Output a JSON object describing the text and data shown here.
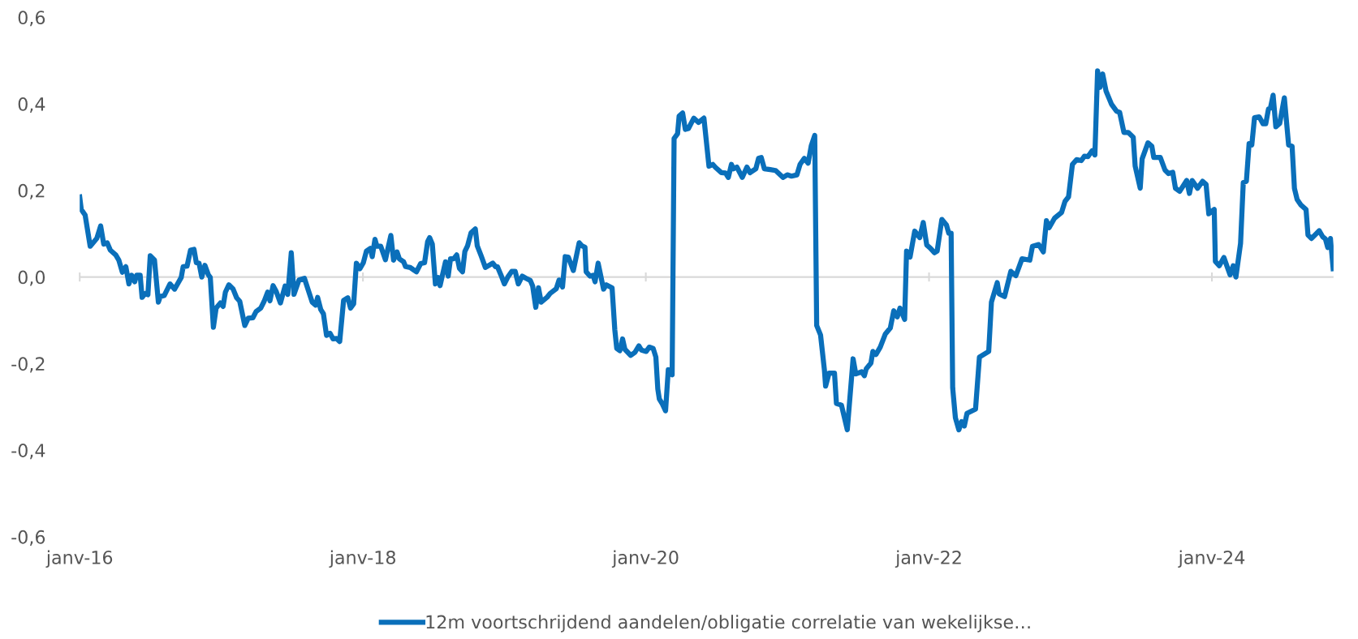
{
  "chart_data": {
    "type": "line",
    "x": [
      "2016-01-01",
      "2016-01-05",
      "2016-01-15",
      "2016-01-28",
      "2016-02-14",
      "2016-02-24",
      "2016-03-03",
      "2016-03-12",
      "2016-03-20",
      "2016-04-03",
      "2016-04-11",
      "2016-04-20",
      "2016-04-29",
      "2016-05-07",
      "2016-05-14",
      "2016-05-22",
      "2016-05-27",
      "2016-06-05",
      "2016-06-10",
      "2016-06-18",
      "2016-06-25",
      "2016-07-01",
      "2016-07-12",
      "2016-07-22",
      "2016-07-27",
      "2016-08-06",
      "2016-08-21",
      "2016-09-02",
      "2016-09-19",
      "2016-09-24",
      "2016-10-04",
      "2016-10-13",
      "2016-10-22",
      "2016-10-28",
      "2016-11-04",
      "2016-11-11",
      "2016-11-19",
      "2016-11-28",
      "2016-12-03",
      "2016-12-11",
      "2016-12-18",
      "2016-12-29",
      "2017-01-05",
      "2017-01-11",
      "2017-01-20",
      "2017-01-31",
      "2017-02-09",
      "2017-02-17",
      "2017-03-02",
      "2017-03-11",
      "2017-03-23",
      "2017-03-31",
      "2017-04-12",
      "2017-04-21",
      "2017-04-30",
      "2017-05-06",
      "2017-05-14",
      "2017-05-22",
      "2017-06-02",
      "2017-06-14",
      "2017-06-21",
      "2017-06-30",
      "2017-07-07",
      "2017-07-20",
      "2017-08-03",
      "2017-08-12",
      "2017-08-23",
      "2017-09-01",
      "2017-09-06",
      "2017-09-14",
      "2017-09-21",
      "2017-09-29",
      "2017-10-08",
      "2017-10-16",
      "2017-10-25",
      "2017-11-02",
      "2017-11-12",
      "2017-11-23",
      "2017-11-30",
      "2017-12-08",
      "2017-12-15",
      "2017-12-24",
      "2018-01-02",
      "2018-01-10",
      "2018-01-20",
      "2018-01-25",
      "2018-02-01",
      "2018-02-06",
      "2018-02-16",
      "2018-02-28",
      "2018-03-14",
      "2018-03-21",
      "2018-03-30",
      "2018-04-05",
      "2018-04-16",
      "2018-04-21",
      "2018-05-03",
      "2018-05-19",
      "2018-05-30",
      "2018-06-09",
      "2018-06-17",
      "2018-06-22",
      "2018-06-29",
      "2018-07-07",
      "2018-07-14",
      "2018-07-19",
      "2018-08-02",
      "2018-08-09",
      "2018-08-15",
      "2018-08-23",
      "2018-08-31",
      "2018-09-07",
      "2018-09-15",
      "2018-09-21",
      "2018-09-28",
      "2018-10-07",
      "2018-10-18",
      "2018-10-23",
      "2018-11-02",
      "2018-11-13",
      "2018-12-02",
      "2018-12-09",
      "2018-12-14",
      "2018-12-23",
      "2019-01-01",
      "2019-01-10",
      "2019-01-20",
      "2019-01-29",
      "2019-02-06",
      "2019-02-16",
      "2019-02-26",
      "2019-03-09",
      "2019-03-15",
      "2019-03-23",
      "2019-03-30",
      "2019-04-06",
      "2019-04-21",
      "2019-04-29",
      "2019-05-15",
      "2019-05-22",
      "2019-05-31",
      "2019-06-07",
      "2019-06-15",
      "2019-06-28",
      "2019-07-13",
      "2019-07-20",
      "2019-07-28",
      "2019-07-31",
      "2019-08-10",
      "2019-08-18",
      "2019-08-23",
      "2019-08-31",
      "2019-09-14",
      "2019-09-21",
      "2019-10-06",
      "2019-10-13",
      "2019-10-18",
      "2019-10-26",
      "2019-11-02",
      "2019-11-08",
      "2019-11-23",
      "2019-12-04",
      "2019-12-14",
      "2019-12-21",
      "2020-01-02",
      "2020-01-10",
      "2020-01-20",
      "2020-01-27",
      "2020-02-01",
      "2020-02-05",
      "2020-02-12",
      "2020-02-21",
      "2020-02-28",
      "2020-03-09",
      "2020-03-14",
      "2020-03-23",
      "2020-03-27",
      "2020-04-05",
      "2020-04-12",
      "2020-04-20",
      "2020-05-04",
      "2020-05-16",
      "2020-05-30",
      "2020-06-12",
      "2020-06-22",
      "2020-06-29",
      "2020-07-14",
      "2020-07-25",
      "2020-08-01",
      "2020-08-09",
      "2020-08-14",
      "2020-08-23",
      "2020-09-06",
      "2020-09-18",
      "2020-09-26",
      "2020-10-11",
      "2020-10-18",
      "2020-10-25",
      "2020-11-02",
      "2020-11-17",
      "2020-12-01",
      "2020-12-20",
      "2020-12-31",
      "2021-01-11",
      "2021-01-25",
      "2021-02-02",
      "2021-02-13",
      "2021-02-23",
      "2021-03-03",
      "2021-03-12",
      "2021-03-17",
      "2021-03-27",
      "2021-04-06",
      "2021-04-09",
      "2021-04-18",
      "2021-05-02",
      "2021-05-07",
      "2021-05-20",
      "2021-06-04",
      "2021-06-19",
      "2021-06-26",
      "2021-07-11",
      "2021-07-18",
      "2021-07-23",
      "2021-08-04",
      "2021-08-09",
      "2021-08-17",
      "2021-08-28",
      "2021-09-10",
      "2021-09-23",
      "2021-10-02",
      "2021-10-11",
      "2021-10-18",
      "2021-10-30",
      "2021-11-04",
      "2021-11-13",
      "2021-11-25",
      "2021-12-08",
      "2021-12-17",
      "2021-12-26",
      "2022-01-04",
      "2022-01-15",
      "2022-01-22",
      "2022-02-03",
      "2022-02-15",
      "2022-02-21",
      "2022-02-27",
      "2022-03-03",
      "2022-03-10",
      "2022-03-19",
      "2022-03-26",
      "2022-04-02",
      "2022-04-09",
      "2022-05-01",
      "2022-05-11",
      "2022-06-04",
      "2022-06-11",
      "2022-06-26",
      "2022-07-01",
      "2022-07-15",
      "2022-07-31",
      "2022-08-13",
      "2022-08-29",
      "2022-09-18",
      "2022-09-25",
      "2022-10-11",
      "2022-10-23",
      "2022-10-31",
      "2022-11-07",
      "2022-11-21",
      "2022-12-09",
      "2022-12-18",
      "2022-12-27",
      "2023-01-06",
      "2023-01-17",
      "2023-01-29",
      "2023-02-06",
      "2023-02-15",
      "2023-02-26",
      "2023-03-05",
      "2023-03-12",
      "2023-03-18",
      "2023-03-25",
      "2023-04-03",
      "2023-04-17",
      "2023-04-30",
      "2023-05-08",
      "2023-05-19",
      "2023-05-30",
      "2023-06-12",
      "2023-06-17",
      "2023-06-30",
      "2023-07-05",
      "2023-07-20",
      "2023-07-30",
      "2023-08-04",
      "2023-08-21",
      "2023-09-02",
      "2023-09-11",
      "2023-09-22",
      "2023-09-29",
      "2023-10-10",
      "2023-10-28",
      "2023-11-04",
      "2023-11-11",
      "2023-11-25",
      "2023-12-08",
      "2023-12-17",
      "2023-12-24",
      "2024-01-07",
      "2024-01-10",
      "2024-01-20",
      "2024-02-01",
      "2024-02-17",
      "2024-02-25",
      "2024-03-03",
      "2024-03-15",
      "2024-03-22",
      "2024-03-30",
      "2024-04-06",
      "2024-04-13",
      "2024-04-20",
      "2024-05-02",
      "2024-05-12",
      "2024-05-19",
      "2024-05-26",
      "2024-05-31",
      "2024-06-07",
      "2024-06-14",
      "2024-06-24",
      "2024-07-06",
      "2024-07-17",
      "2024-07-26",
      "2024-08-01",
      "2024-08-08",
      "2024-08-18",
      "2024-08-31",
      "2024-09-05",
      "2024-09-14",
      "2024-10-04",
      "2024-10-13",
      "2024-10-20",
      "2024-10-26",
      "2024-11-02",
      "2024-11-09"
    ],
    "series": [
      {
        "name": "12m voortschrijdend aandelen/obligatie correlatie van wekelijkse…",
        "color": "#0a6fba",
        "values": [
          0.185,
          0.156,
          0.143,
          0.071,
          0.089,
          0.118,
          0.076,
          0.079,
          0.062,
          0.051,
          0.039,
          0.011,
          0.024,
          -0.016,
          0.004,
          -0.011,
          0.004,
          0.004,
          -0.047,
          -0.038,
          -0.041,
          0.049,
          0.039,
          -0.058,
          -0.045,
          -0.043,
          -0.016,
          -0.028,
          -0.001,
          0.024,
          0.025,
          0.062,
          0.064,
          0.033,
          0.032,
          0.0,
          0.027,
          0.005,
          -0.001,
          -0.116,
          -0.072,
          -0.06,
          -0.068,
          -0.035,
          -0.018,
          -0.028,
          -0.048,
          -0.056,
          -0.112,
          -0.095,
          -0.094,
          -0.08,
          -0.072,
          -0.056,
          -0.035,
          -0.055,
          -0.02,
          -0.033,
          -0.06,
          -0.021,
          -0.04,
          0.056,
          -0.04,
          -0.007,
          -0.003,
          -0.028,
          -0.058,
          -0.065,
          -0.047,
          -0.075,
          -0.085,
          -0.135,
          -0.13,
          -0.143,
          -0.142,
          -0.149,
          -0.054,
          -0.048,
          -0.072,
          -0.062,
          0.032,
          0.019,
          0.033,
          0.06,
          0.066,
          0.047,
          0.087,
          0.071,
          0.071,
          0.04,
          0.096,
          0.039,
          0.058,
          0.042,
          0.035,
          0.024,
          0.022,
          0.012,
          0.031,
          0.033,
          0.082,
          0.091,
          0.076,
          -0.016,
          -0.001,
          -0.02,
          0.035,
          0.002,
          0.042,
          0.042,
          0.051,
          0.02,
          0.012,
          0.059,
          0.072,
          0.102,
          0.111,
          0.072,
          0.049,
          0.022,
          0.032,
          0.024,
          0.024,
          0.005,
          -0.016,
          0.0,
          0.013,
          0.013,
          -0.016,
          0.002,
          -0.003,
          -0.008,
          -0.021,
          -0.07,
          -0.025,
          -0.058,
          -0.047,
          -0.038,
          -0.027,
          -0.007,
          -0.023,
          0.047,
          0.046,
          0.015,
          0.079,
          0.072,
          0.069,
          0.012,
          0.002,
          0.004,
          -0.011,
          0.032,
          -0.028,
          -0.018,
          -0.025,
          -0.122,
          -0.165,
          -0.17,
          -0.143,
          -0.167,
          -0.181,
          -0.174,
          -0.159,
          -0.169,
          -0.172,
          -0.162,
          -0.165,
          -0.185,
          -0.259,
          -0.282,
          -0.292,
          -0.309,
          -0.214,
          -0.226,
          0.32,
          0.331,
          0.372,
          0.379,
          0.341,
          0.343,
          0.367,
          0.357,
          0.367,
          0.256,
          0.26,
          0.253,
          0.241,
          0.24,
          0.23,
          0.26,
          0.25,
          0.254,
          0.23,
          0.254,
          0.241,
          0.25,
          0.274,
          0.276,
          0.25,
          0.248,
          0.246,
          0.23,
          0.236,
          0.233,
          0.236,
          0.26,
          0.274,
          0.263,
          0.303,
          0.327,
          -0.112,
          -0.134,
          -0.215,
          -0.252,
          -0.222,
          -0.222,
          -0.292,
          -0.296,
          -0.353,
          -0.189,
          -0.224,
          -0.219,
          -0.228,
          -0.212,
          -0.199,
          -0.172,
          -0.179,
          -0.162,
          -0.132,
          -0.118,
          -0.078,
          -0.092,
          -0.072,
          -0.098,
          0.06,
          0.046,
          0.106,
          0.091,
          0.126,
          0.074,
          0.067,
          0.056,
          0.06,
          0.133,
          0.12,
          0.101,
          0.101,
          -0.256,
          -0.325,
          -0.353,
          -0.334,
          -0.344,
          -0.315,
          -0.305,
          -0.185,
          -0.172,
          -0.058,
          -0.013,
          -0.039,
          -0.045,
          0.013,
          0.003,
          0.042,
          0.039,
          0.071,
          0.075,
          0.058,
          0.13,
          0.114,
          0.136,
          0.149,
          0.175,
          0.185,
          0.26,
          0.271,
          0.269,
          0.279,
          0.278,
          0.292,
          0.282,
          0.476,
          0.438,
          0.469,
          0.429,
          0.399,
          0.383,
          0.38,
          0.334,
          0.334,
          0.323,
          0.256,
          0.205,
          0.273,
          0.31,
          0.302,
          0.276,
          0.276,
          0.247,
          0.239,
          0.242,
          0.205,
          0.198,
          0.223,
          0.193,
          0.223,
          0.205,
          0.221,
          0.214,
          0.146,
          0.156,
          0.036,
          0.026,
          0.045,
          0.005,
          0.026,
          0.0,
          0.078,
          0.218,
          0.221,
          0.308,
          0.305,
          0.368,
          0.37,
          0.354,
          0.354,
          0.388,
          0.39,
          0.42,
          0.347,
          0.355,
          0.414,
          0.305,
          0.302,
          0.205,
          0.179,
          0.166,
          0.156,
          0.097,
          0.089,
          0.107,
          0.093,
          0.088,
          0.068,
          0.089,
          0.019
        ]
      }
    ],
    "xlim": [
      "2016-01-01",
      "2024-11-10"
    ],
    "xticks": [
      {
        "value": "2016-01-01",
        "label": "janv-16"
      },
      {
        "value": "2018-01-01",
        "label": "janv-18"
      },
      {
        "value": "2020-01-01",
        "label": "janv-20"
      },
      {
        "value": "2022-01-01",
        "label": "janv-22"
      },
      {
        "value": "2024-01-01",
        "label": "janv-24"
      }
    ],
    "ylim": [
      -0.6,
      0.6
    ],
    "yticks": [
      {
        "value": -0.6,
        "label": "-0,6"
      },
      {
        "value": -0.4,
        "label": "-0,4"
      },
      {
        "value": -0.2,
        "label": "-0,2"
      },
      {
        "value": 0.0,
        "label": "0,0"
      },
      {
        "value": 0.2,
        "label": "0,2"
      },
      {
        "value": 0.4,
        "label": "0,4"
      },
      {
        "value": 0.6,
        "label": "0,6"
      }
    ],
    "ref_lines": [
      {
        "axis": "y",
        "value": 0.0,
        "color": "#d9d9d9"
      }
    ],
    "grid": false,
    "legend": "bottom",
    "marker": "none",
    "line_style": "solid"
  }
}
